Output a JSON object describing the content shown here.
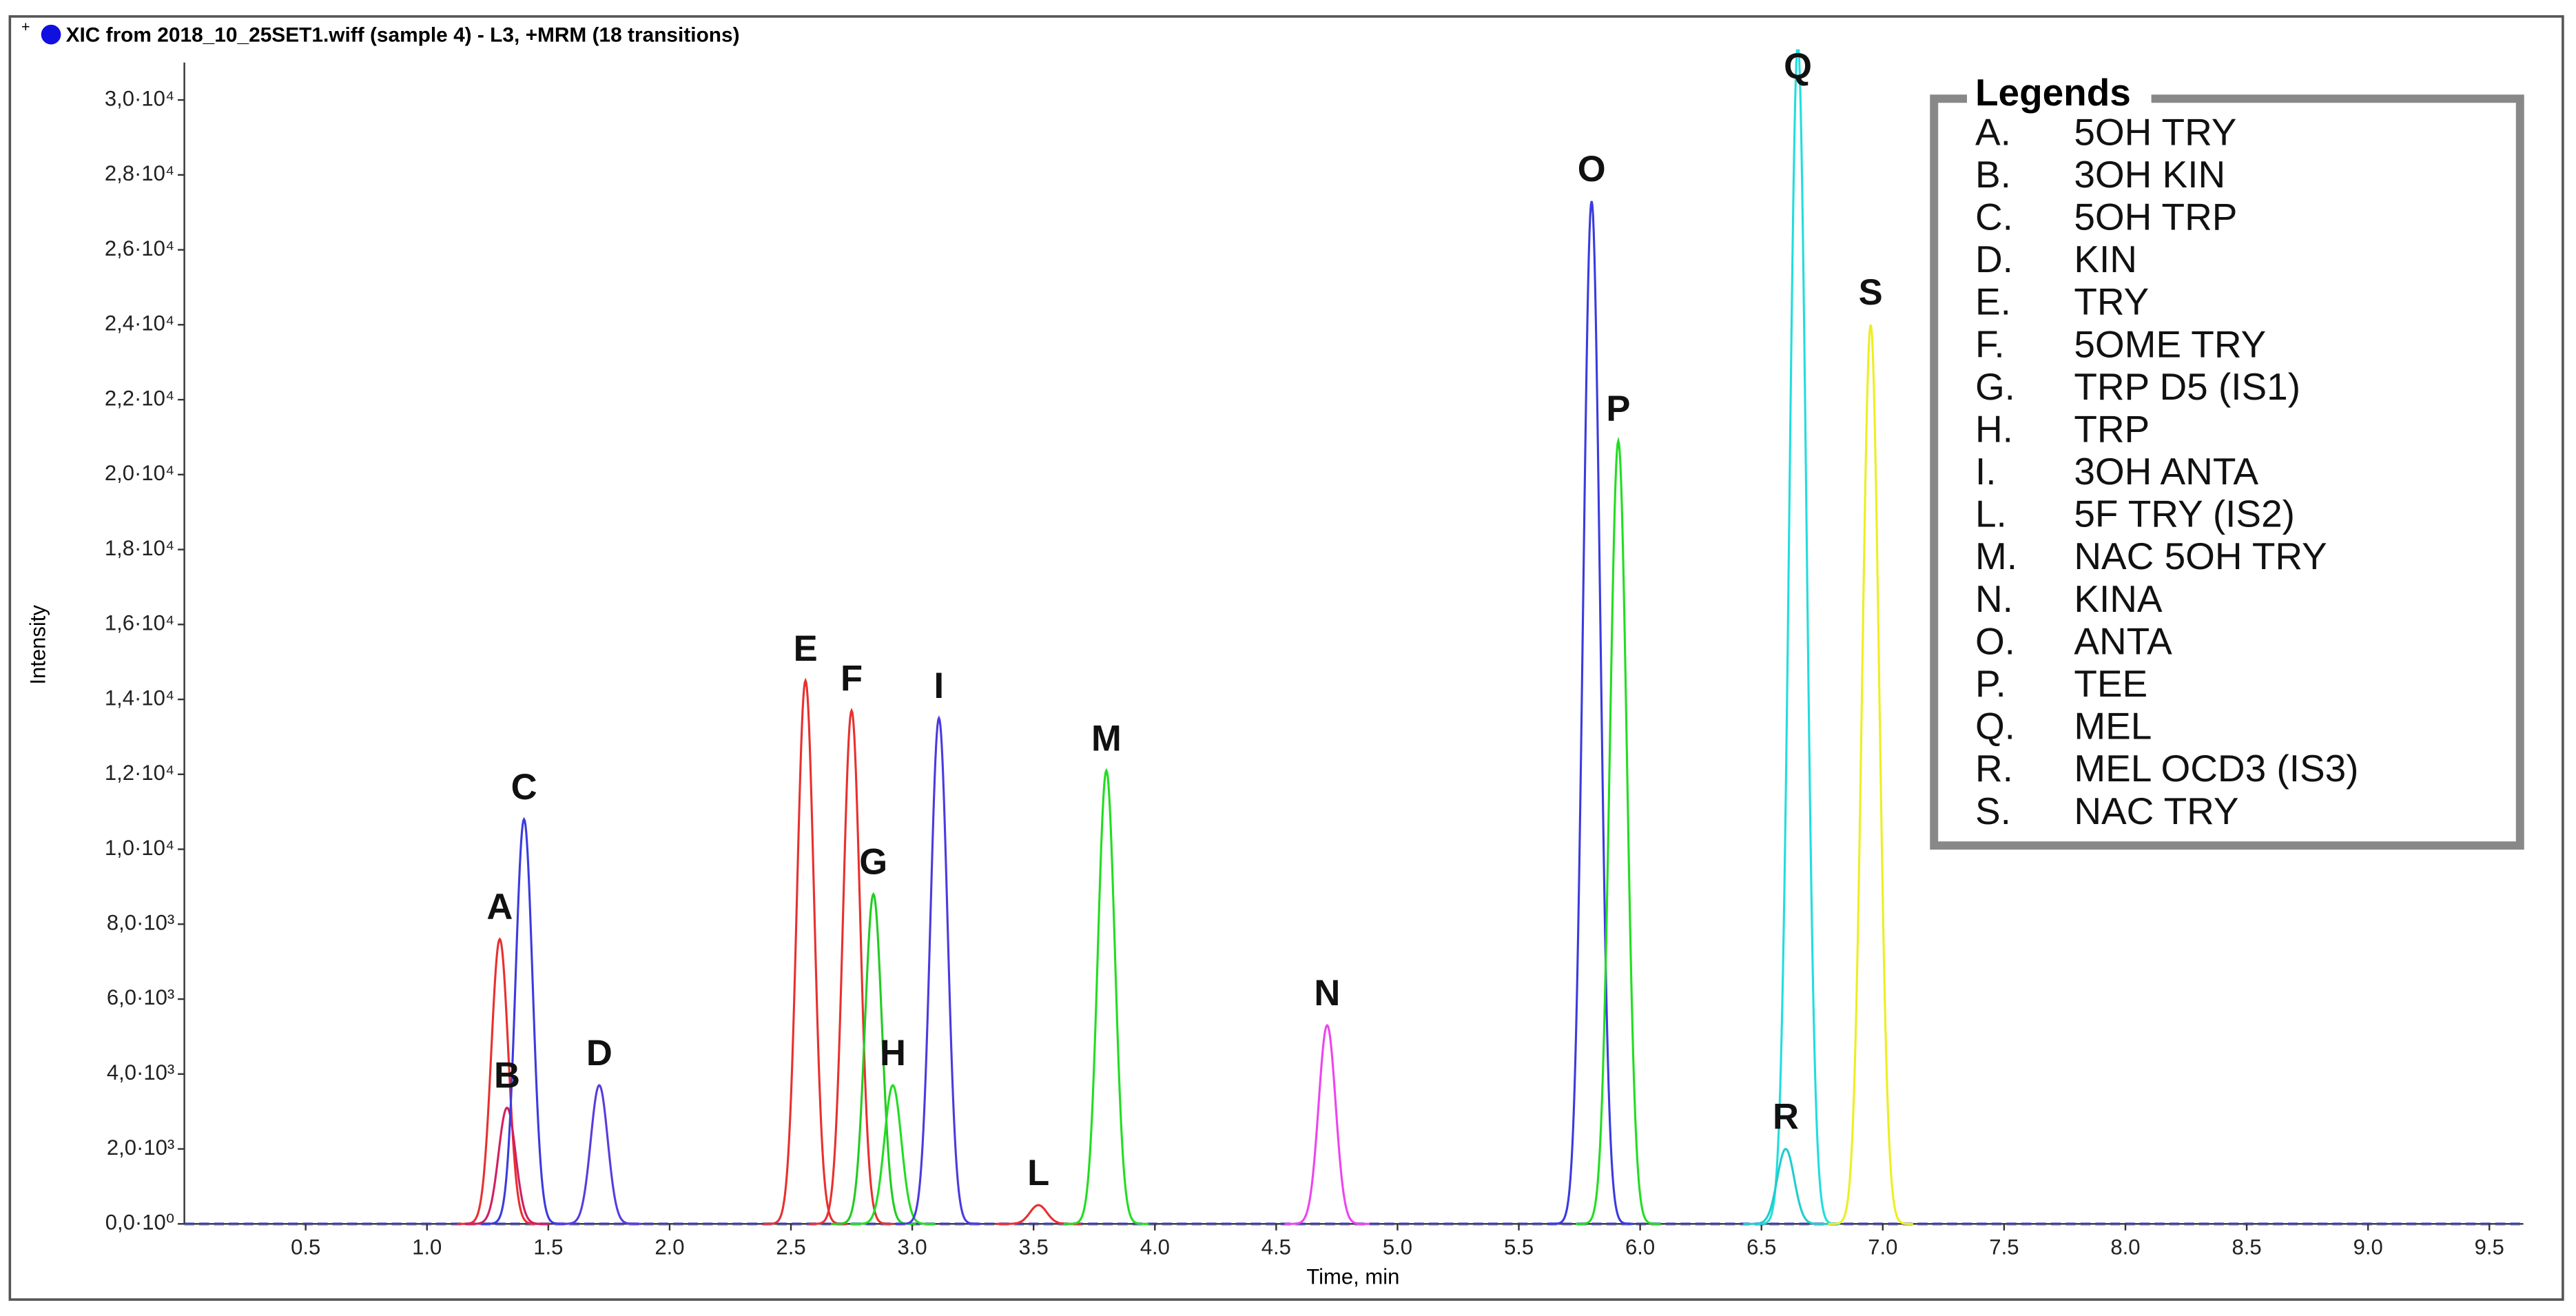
{
  "header": "XIC from 2018_10_25SET1.wiff (sample 4) - L3, +MRM (18 transitions)",
  "chart_data": {
    "type": "line",
    "xlabel": "Time, min",
    "ylabel": "Intensity",
    "xlim": [
      0,
      9.64
    ],
    "ylim": [
      0,
      31000
    ],
    "xticks": [
      {
        "value": 0.5,
        "label": "0.5"
      },
      {
        "value": 1,
        "label": "1.0"
      },
      {
        "value": 1.5,
        "label": "1.5"
      },
      {
        "value": 2,
        "label": "2.0"
      },
      {
        "value": 2.5,
        "label": "2.5"
      },
      {
        "value": 3,
        "label": "3.0"
      },
      {
        "value": 3.5,
        "label": "3.5"
      },
      {
        "value": 4,
        "label": "4.0"
      },
      {
        "value": 4.5,
        "label": "4.5"
      },
      {
        "value": 5,
        "label": "5.0"
      },
      {
        "value": 5.5,
        "label": "5.5"
      },
      {
        "value": 6,
        "label": "6.0"
      },
      {
        "value": 6.5,
        "label": "6.5"
      },
      {
        "value": 7,
        "label": "7.0"
      },
      {
        "value": 7.5,
        "label": "7.5"
      },
      {
        "value": 8,
        "label": "8.0"
      },
      {
        "value": 8.5,
        "label": "8.5"
      },
      {
        "value": 9,
        "label": "9.0"
      },
      {
        "value": 9.5,
        "label": "9.5"
      }
    ],
    "yticks": [
      {
        "value": 0,
        "label": "0,0·10⁰"
      },
      {
        "value": 2000,
        "label": "2,0·10³"
      },
      {
        "value": 4000,
        "label": "4,0·10³"
      },
      {
        "value": 6000,
        "label": "6,0·10³"
      },
      {
        "value": 8000,
        "label": "8,0·10³"
      },
      {
        "value": 10000,
        "label": "1,0·10⁴"
      },
      {
        "value": 12000,
        "label": "1,2·10⁴"
      },
      {
        "value": 14000,
        "label": "1,4·10⁴"
      },
      {
        "value": 16000,
        "label": "1,6·10⁴"
      },
      {
        "value": 18000,
        "label": "1,8·10⁴"
      },
      {
        "value": 20000,
        "label": "2,0·10⁴"
      },
      {
        "value": 22000,
        "label": "2,2·10⁴"
      },
      {
        "value": 24000,
        "label": "2,4·10⁴"
      },
      {
        "value": 26000,
        "label": "2,6·10⁴"
      },
      {
        "value": 28000,
        "label": "2,8·10⁴"
      },
      {
        "value": 30000,
        "label": "3,0·10⁴"
      }
    ],
    "peaks": [
      {
        "label": "A",
        "x": 1.3,
        "value": 7600,
        "color": "#e83030"
      },
      {
        "label": "B",
        "x": 1.33,
        "value": 3100,
        "color": "#d02060"
      },
      {
        "label": "C",
        "x": 1.4,
        "value": 10800,
        "color": "#3b3bdf"
      },
      {
        "label": "D",
        "x": 1.71,
        "value": 3700,
        "color": "#5a3bdf"
      },
      {
        "label": "E",
        "x": 2.56,
        "value": 14500,
        "color": "#e83030"
      },
      {
        "label": "F",
        "x": 2.75,
        "value": 13700,
        "color": "#e83030"
      },
      {
        "label": "G",
        "x": 2.84,
        "value": 8800,
        "color": "#22cc22"
      },
      {
        "label": "H",
        "x": 2.92,
        "value": 3700,
        "color": "#22dd22"
      },
      {
        "label": "I",
        "x": 3.11,
        "value": 13500,
        "color": "#4a3bdf"
      },
      {
        "label": "L",
        "x": 3.52,
        "value": 500,
        "color": "#e83030"
      },
      {
        "label": "M",
        "x": 3.8,
        "value": 12100,
        "color": "#22dd22"
      },
      {
        "label": "N",
        "x": 4.71,
        "value": 5300,
        "color": "#ee44ee"
      },
      {
        "label": "O",
        "x": 5.8,
        "value": 27300,
        "color": "#3b3bdf"
      },
      {
        "label": "P",
        "x": 5.91,
        "value": 20900,
        "color": "#22dd22"
      },
      {
        "label": "Q",
        "x": 6.65,
        "value": 31500,
        "color": "#22dddd"
      },
      {
        "label": "R",
        "x": 6.6,
        "value": 2000,
        "color": "#22cccc"
      },
      {
        "label": "S",
        "x": 6.95,
        "value": 24000,
        "color": "#eeee22"
      }
    ],
    "legend": {
      "title": "Legends",
      "entries": [
        {
          "key": "A.",
          "name": "5OH TRY"
        },
        {
          "key": "B.",
          "name": "3OH KIN"
        },
        {
          "key": "C.",
          "name": "5OH TRP"
        },
        {
          "key": "D.",
          "name": "KIN"
        },
        {
          "key": "E.",
          "name": "TRY"
        },
        {
          "key": "F.",
          "name": "5OME TRY"
        },
        {
          "key": "G.",
          "name": "TRP D5 (IS1)"
        },
        {
          "key": "H.",
          "name": "TRP"
        },
        {
          "key": "I.",
          "name": "3OH ANTA"
        },
        {
          "key": "L.",
          "name": "5F TRY (IS2)"
        },
        {
          "key": "M.",
          "name": "NAC 5OH TRY"
        },
        {
          "key": "N.",
          "name": "KINA"
        },
        {
          "key": "O.",
          "name": "ANTA"
        },
        {
          "key": "P.",
          "name": "TEE"
        },
        {
          "key": "Q.",
          "name": "MEL"
        },
        {
          "key": "R.",
          "name": "MEL OCD3 (IS3)"
        },
        {
          "key": "S.",
          "name": "NAC TRY"
        }
      ]
    }
  }
}
